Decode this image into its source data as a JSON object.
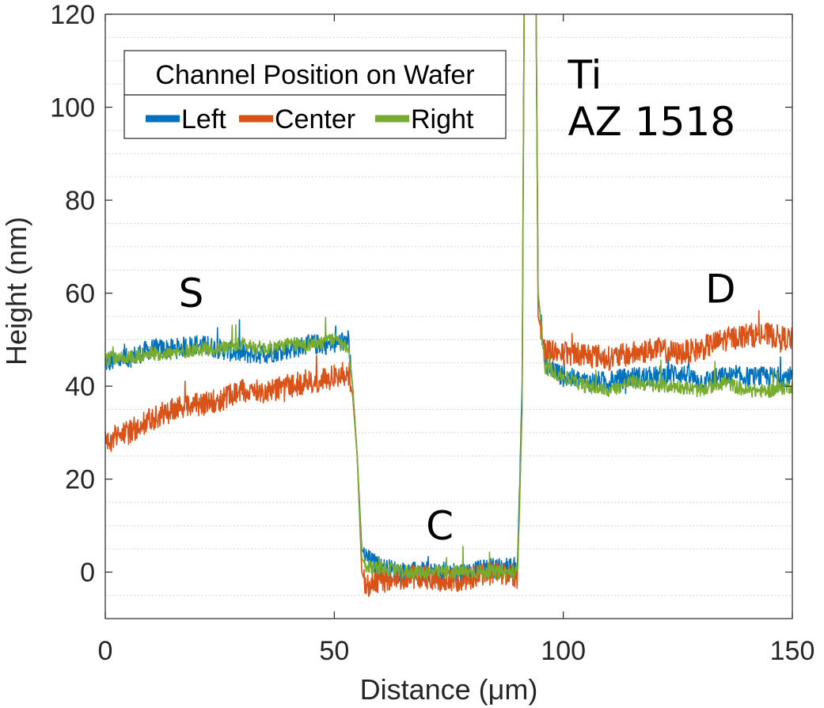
{
  "chart_data": {
    "type": "line",
    "xlabel": "Distance (μm)",
    "ylabel": "Height (nm)",
    "xlim": [
      0,
      150
    ],
    "ylim": [
      -10,
      120
    ],
    "xticks": [
      0,
      50,
      100,
      150
    ],
    "xtick_labels": [
      "0",
      "50",
      "100",
      "150"
    ],
    "yticks": [
      0,
      20,
      40,
      60,
      80,
      100,
      120
    ],
    "ytick_labels": [
      "0",
      "20",
      "40",
      "60",
      "80",
      "100",
      "120"
    ],
    "grid": "minor y dotted",
    "legend": {
      "title": "Channel Position on Wafer",
      "placement": "top-left",
      "entries": [
        "Left",
        "Center",
        "Right"
      ]
    },
    "annotations": [
      {
        "text": "S",
        "x": 16,
        "y": 57
      },
      {
        "text": "C",
        "x": 70,
        "y": 7
      },
      {
        "text": "Ti",
        "x": 101,
        "y": 104
      },
      {
        "text": "AZ 1518",
        "x": 101,
        "y": 94
      },
      {
        "text": "D",
        "x": 131,
        "y": 58
      }
    ],
    "series": [
      {
        "name": "Left",
        "color": "#0072BD",
        "x": [
          0,
          5,
          10,
          15,
          20,
          25,
          30,
          35,
          40,
          45,
          50,
          53,
          54,
          55,
          56,
          57,
          60,
          65,
          70,
          75,
          80,
          85,
          90,
          91,
          91.5,
          92,
          93,
          94,
          94.5,
          96,
          100,
          105,
          110,
          115,
          120,
          125,
          130,
          135,
          140,
          145,
          150
        ],
        "y": [
          45,
          46,
          48,
          48,
          49,
          48,
          47,
          47,
          48,
          49,
          49,
          50,
          40,
          25,
          5,
          3,
          1,
          0,
          0,
          0,
          0,
          1,
          1,
          40,
          130,
          130,
          130,
          130,
          60,
          45,
          42,
          41,
          41,
          42,
          42,
          43,
          41,
          42,
          42,
          42,
          42
        ]
      },
      {
        "name": "Center",
        "color": "#D95319",
        "x": [
          0,
          5,
          10,
          15,
          20,
          25,
          30,
          35,
          40,
          45,
          50,
          53,
          54,
          55,
          56,
          57,
          60,
          65,
          70,
          75,
          80,
          85,
          90,
          91,
          91.5,
          92,
          93,
          94,
          94.5,
          96,
          100,
          105,
          110,
          115,
          120,
          125,
          130,
          135,
          140,
          145,
          150
        ],
        "y": [
          28,
          30,
          33,
          35,
          36,
          37,
          39,
          39,
          40,
          41,
          42,
          43,
          38,
          25,
          0,
          -3,
          -2,
          -1,
          -1,
          -2,
          -1,
          0,
          -1,
          35,
          130,
          130,
          130,
          130,
          55,
          48,
          47,
          47,
          46,
          47,
          48,
          47,
          48,
          50,
          51,
          51,
          50
        ]
      },
      {
        "name": "Right",
        "color": "#77AC30",
        "x": [
          0,
          5,
          10,
          15,
          20,
          25,
          30,
          35,
          40,
          45,
          50,
          53,
          54,
          55,
          56,
          57,
          60,
          65,
          70,
          75,
          80,
          85,
          90,
          91,
          91.5,
          92,
          93,
          94,
          94.5,
          96,
          100,
          105,
          110,
          115,
          120,
          125,
          130,
          135,
          140,
          145,
          150
        ],
        "y": [
          46,
          46,
          47,
          47,
          48,
          48,
          49,
          48,
          49,
          49,
          50,
          48,
          40,
          25,
          3,
          1,
          1,
          0,
          0,
          0,
          0,
          0,
          0,
          35,
          130,
          130,
          130,
          130,
          60,
          44,
          42,
          40,
          39,
          41,
          40,
          40,
          39,
          41,
          39,
          39,
          40
        ]
      }
    ]
  }
}
